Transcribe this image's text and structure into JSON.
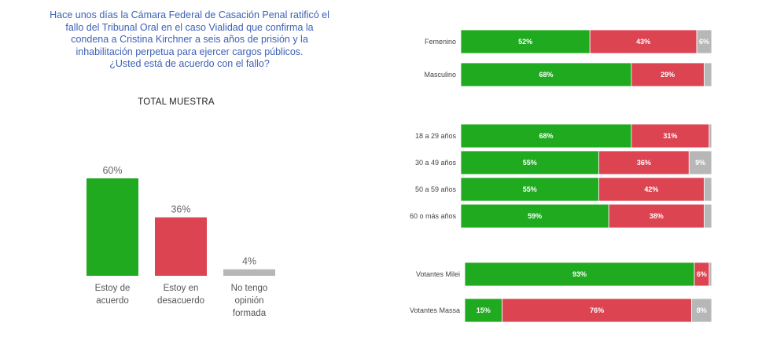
{
  "question": {
    "lines": [
      "Hace unos días la Cámara Federal de Casación Penal ratificó el",
      "fallo del Tribunal Oral en el caso Vialidad que confirma la",
      "condena a Cristina Kirchner a seis años de prisión y la",
      "inhabilitación perpetua para ejercer cargos públicos.",
      "¿Usted está de acuerdo con el fallo?"
    ]
  },
  "colors": {
    "agree": "#1faa1f",
    "disagree": "#dc4452",
    "none": "#b7b7b7",
    "question_text": "#3d61b7"
  },
  "chart_data": [
    {
      "type": "bar",
      "title": "TOTAL MUESTRA",
      "categories": [
        [
          "Estoy de",
          "acuerdo"
        ],
        [
          "Estoy en",
          "desacuerdo"
        ],
        [
          "No tengo",
          "opinión",
          "formada"
        ]
      ],
      "values": [
        60,
        36,
        4
      ],
      "value_labels": [
        "60%",
        "36%",
        "4%"
      ],
      "ylim": [
        0,
        100
      ],
      "grid": false
    },
    {
      "type": "bar",
      "orientation": "horizontal",
      "stacked": true,
      "unit": "%",
      "grid": false,
      "groups": [
        {
          "rows": [
            {
              "label": "Femenino",
              "values": [
                52,
                43,
                6
              ],
              "labels": [
                "52%",
                "43%",
                "6%"
              ]
            },
            {
              "label": "Masculino",
              "values": [
                68,
                29,
                3
              ],
              "labels": [
                "68%",
                "29%",
                ""
              ]
            }
          ]
        },
        {
          "rows": [
            {
              "label": "18 a 29 años",
              "values": [
                68,
                31,
                1
              ],
              "labels": [
                "68%",
                "31%",
                ""
              ]
            },
            {
              "label": "30 a 49 años",
              "values": [
                55,
                36,
                9
              ],
              "labels": [
                "55%",
                "36%",
                "9%"
              ]
            },
            {
              "label": "50 a 59 años",
              "values": [
                55,
                42,
                3
              ],
              "labels": [
                "55%",
                "42%",
                ""
              ]
            },
            {
              "label": "60 o más años",
              "values": [
                59,
                38,
                3
              ],
              "labels": [
                "59%",
                "38%",
                ""
              ]
            }
          ]
        },
        {
          "rows": [
            {
              "label": "Votantes Milei",
              "values": [
                93,
                6,
                1
              ],
              "labels": [
                "93%",
                "6%",
                ""
              ]
            },
            {
              "label": "Votantes Massa",
              "values": [
                15,
                76,
                8
              ],
              "labels": [
                "15%",
                "76%",
                "8%"
              ]
            }
          ]
        }
      ]
    }
  ]
}
